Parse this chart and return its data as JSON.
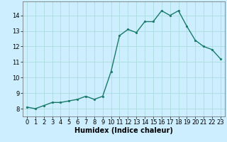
{
  "x": [
    0,
    1,
    2,
    3,
    4,
    5,
    6,
    7,
    8,
    9,
    10,
    11,
    12,
    13,
    14,
    15,
    16,
    17,
    18,
    19,
    20,
    21,
    22,
    23
  ],
  "y": [
    8.1,
    8.0,
    8.2,
    8.4,
    8.4,
    8.5,
    8.6,
    8.8,
    8.6,
    8.8,
    10.4,
    12.7,
    13.1,
    12.9,
    13.6,
    13.6,
    14.3,
    14.0,
    14.3,
    13.3,
    12.4,
    12.0,
    11.8,
    11.2
  ],
  "line_color": "#1a7a6a",
  "marker": "o",
  "markersize": 2.0,
  "linewidth": 1.0,
  "background_color": "#cceeff",
  "grid_color": "#aadddd",
  "xlabel": "Humidex (Indice chaleur)",
  "xlabel_fontsize": 7,
  "xlim": [
    -0.5,
    23.5
  ],
  "ylim": [
    7.5,
    14.9
  ],
  "yticks": [
    8,
    9,
    10,
    11,
    12,
    13,
    14
  ],
  "xticks": [
    0,
    1,
    2,
    3,
    4,
    5,
    6,
    7,
    8,
    9,
    10,
    11,
    12,
    13,
    14,
    15,
    16,
    17,
    18,
    19,
    20,
    21,
    22,
    23
  ],
  "tick_fontsize": 6.0
}
